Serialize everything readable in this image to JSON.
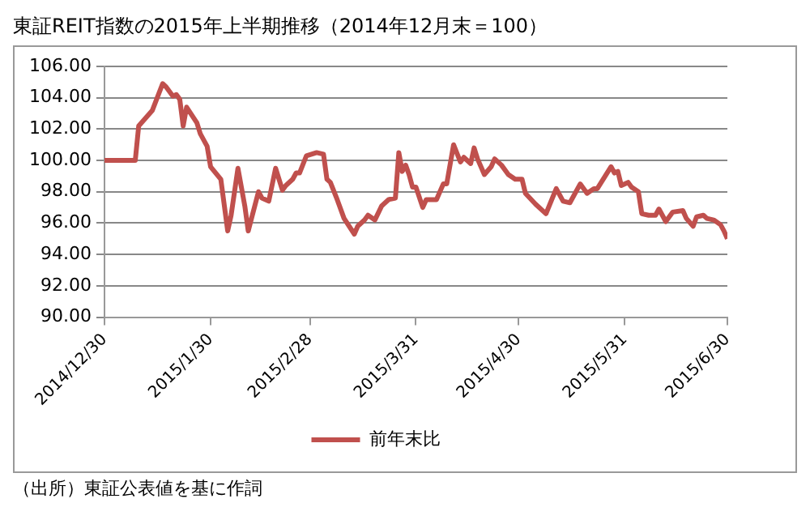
{
  "chart_data": {
    "type": "line",
    "title": "東証REIT指数の2015年上半期推移（2014年12月末＝100）",
    "x": [
      "2014-12-30",
      "2015-01-08",
      "2015-01-09",
      "2015-01-13",
      "2015-01-16",
      "2015-01-17",
      "2015-01-19",
      "2015-01-20",
      "2015-01-21",
      "2015-01-22",
      "2015-01-23",
      "2015-01-26",
      "2015-01-27",
      "2015-01-29",
      "2015-01-30",
      "2015-02-02",
      "2015-02-04",
      "2015-02-05",
      "2015-02-07",
      "2015-02-09",
      "2015-02-10",
      "2015-02-13",
      "2015-02-14",
      "2015-02-16",
      "2015-02-18",
      "2015-02-20",
      "2015-02-21",
      "2015-02-23",
      "2015-02-24",
      "2015-02-25",
      "2015-02-27",
      "2015-03-02",
      "2015-03-04",
      "2015-03-05",
      "2015-03-06",
      "2015-03-08",
      "2015-03-10",
      "2015-03-13",
      "2015-03-14",
      "2015-03-16",
      "2015-03-17",
      "2015-03-19",
      "2015-03-21",
      "2015-03-23",
      "2015-03-25",
      "2015-03-26",
      "2015-03-27",
      "2015-03-28",
      "2015-03-29",
      "2015-03-30",
      "2015-03-31",
      "2015-04-02",
      "2015-04-03",
      "2015-04-06",
      "2015-04-08",
      "2015-04-09",
      "2015-04-11",
      "2015-04-13",
      "2015-04-14",
      "2015-04-16",
      "2015-04-17",
      "2015-04-18",
      "2015-04-20",
      "2015-04-22",
      "2015-04-23",
      "2015-04-25",
      "2015-04-27",
      "2015-04-29",
      "2015-05-01",
      "2015-05-02",
      "2015-05-05",
      "2015-05-08",
      "2015-05-11",
      "2015-05-13",
      "2015-05-15",
      "2015-05-18",
      "2015-05-20",
      "2015-05-22",
      "2015-05-23",
      "2015-05-27",
      "2015-05-28",
      "2015-05-29",
      "2015-05-30",
      "2015-06-01",
      "2015-06-02",
      "2015-06-04",
      "2015-06-05",
      "2015-06-07",
      "2015-06-09",
      "2015-06-10",
      "2015-06-12",
      "2015-06-14",
      "2015-06-17",
      "2015-06-18",
      "2015-06-20",
      "2015-06-21",
      "2015-06-23",
      "2015-06-24",
      "2015-06-26",
      "2015-06-28",
      "2015-06-29",
      "2015-06-30"
    ],
    "series": [
      {
        "name": "前年末比",
        "color": "#c0504d",
        "values": [
          100.0,
          100.0,
          102.2,
          103.2,
          104.9,
          104.7,
          104.1,
          104.2,
          103.9,
          102.2,
          103.4,
          102.4,
          101.7,
          100.9,
          99.6,
          98.8,
          95.5,
          96.5,
          99.5,
          97.1,
          95.5,
          98.0,
          97.6,
          97.4,
          99.5,
          98.1,
          98.4,
          98.8,
          99.2,
          99.2,
          100.3,
          100.5,
          100.4,
          98.8,
          98.6,
          97.5,
          96.3,
          95.3,
          95.8,
          96.2,
          96.5,
          96.2,
          97.1,
          97.5,
          97.6,
          100.5,
          99.3,
          99.7,
          99.1,
          98.3,
          98.3,
          97.0,
          97.5,
          97.5,
          98.5,
          98.5,
          101.0,
          99.9,
          100.2,
          99.8,
          100.8,
          100.1,
          99.1,
          99.6,
          100.1,
          99.7,
          99.1,
          98.8,
          98.8,
          97.9,
          97.2,
          96.6,
          98.2,
          97.4,
          97.3,
          98.5,
          97.9,
          98.2,
          98.2,
          99.6,
          99.2,
          99.3,
          98.4,
          98.6,
          98.3,
          98.0,
          96.6,
          96.5,
          96.5,
          96.9,
          96.1,
          96.7,
          96.8,
          96.3,
          95.8,
          96.4,
          96.5,
          96.3,
          96.2,
          95.9,
          95.5,
          95.0
        ]
      }
    ],
    "xlim": [
      "2014-12-30",
      "2015-06-30"
    ],
    "xticks": [
      {
        "value": "2014-12-30",
        "label": "2014/12/30"
      },
      {
        "value": "2015-01-30",
        "label": "2015/1/30"
      },
      {
        "value": "2015-02-28",
        "label": "2015/2/28"
      },
      {
        "value": "2015-03-31",
        "label": "2015/3/31"
      },
      {
        "value": "2015-04-30",
        "label": "2015/4/30"
      },
      {
        "value": "2015-05-31",
        "label": "2015/5/31"
      },
      {
        "value": "2015-06-30",
        "label": "2015/6/30"
      }
    ],
    "ylim": [
      90,
      106
    ],
    "yticks": [
      {
        "value": 90,
        "label": "90.00"
      },
      {
        "value": 92,
        "label": "92.00"
      },
      {
        "value": 94,
        "label": "94.00"
      },
      {
        "value": 96,
        "label": "96.00"
      },
      {
        "value": 98,
        "label": "98.00"
      },
      {
        "value": 100,
        "label": "100.00"
      },
      {
        "value": 102,
        "label": "102.00"
      },
      {
        "value": 104,
        "label": "104.00"
      },
      {
        "value": 106,
        "label": "106.00"
      }
    ],
    "grid": "y",
    "legend": "bottom",
    "marker": "none",
    "line_style": "solid",
    "annotations": [
      "（出所）東証公表値を基に作詞"
    ]
  }
}
